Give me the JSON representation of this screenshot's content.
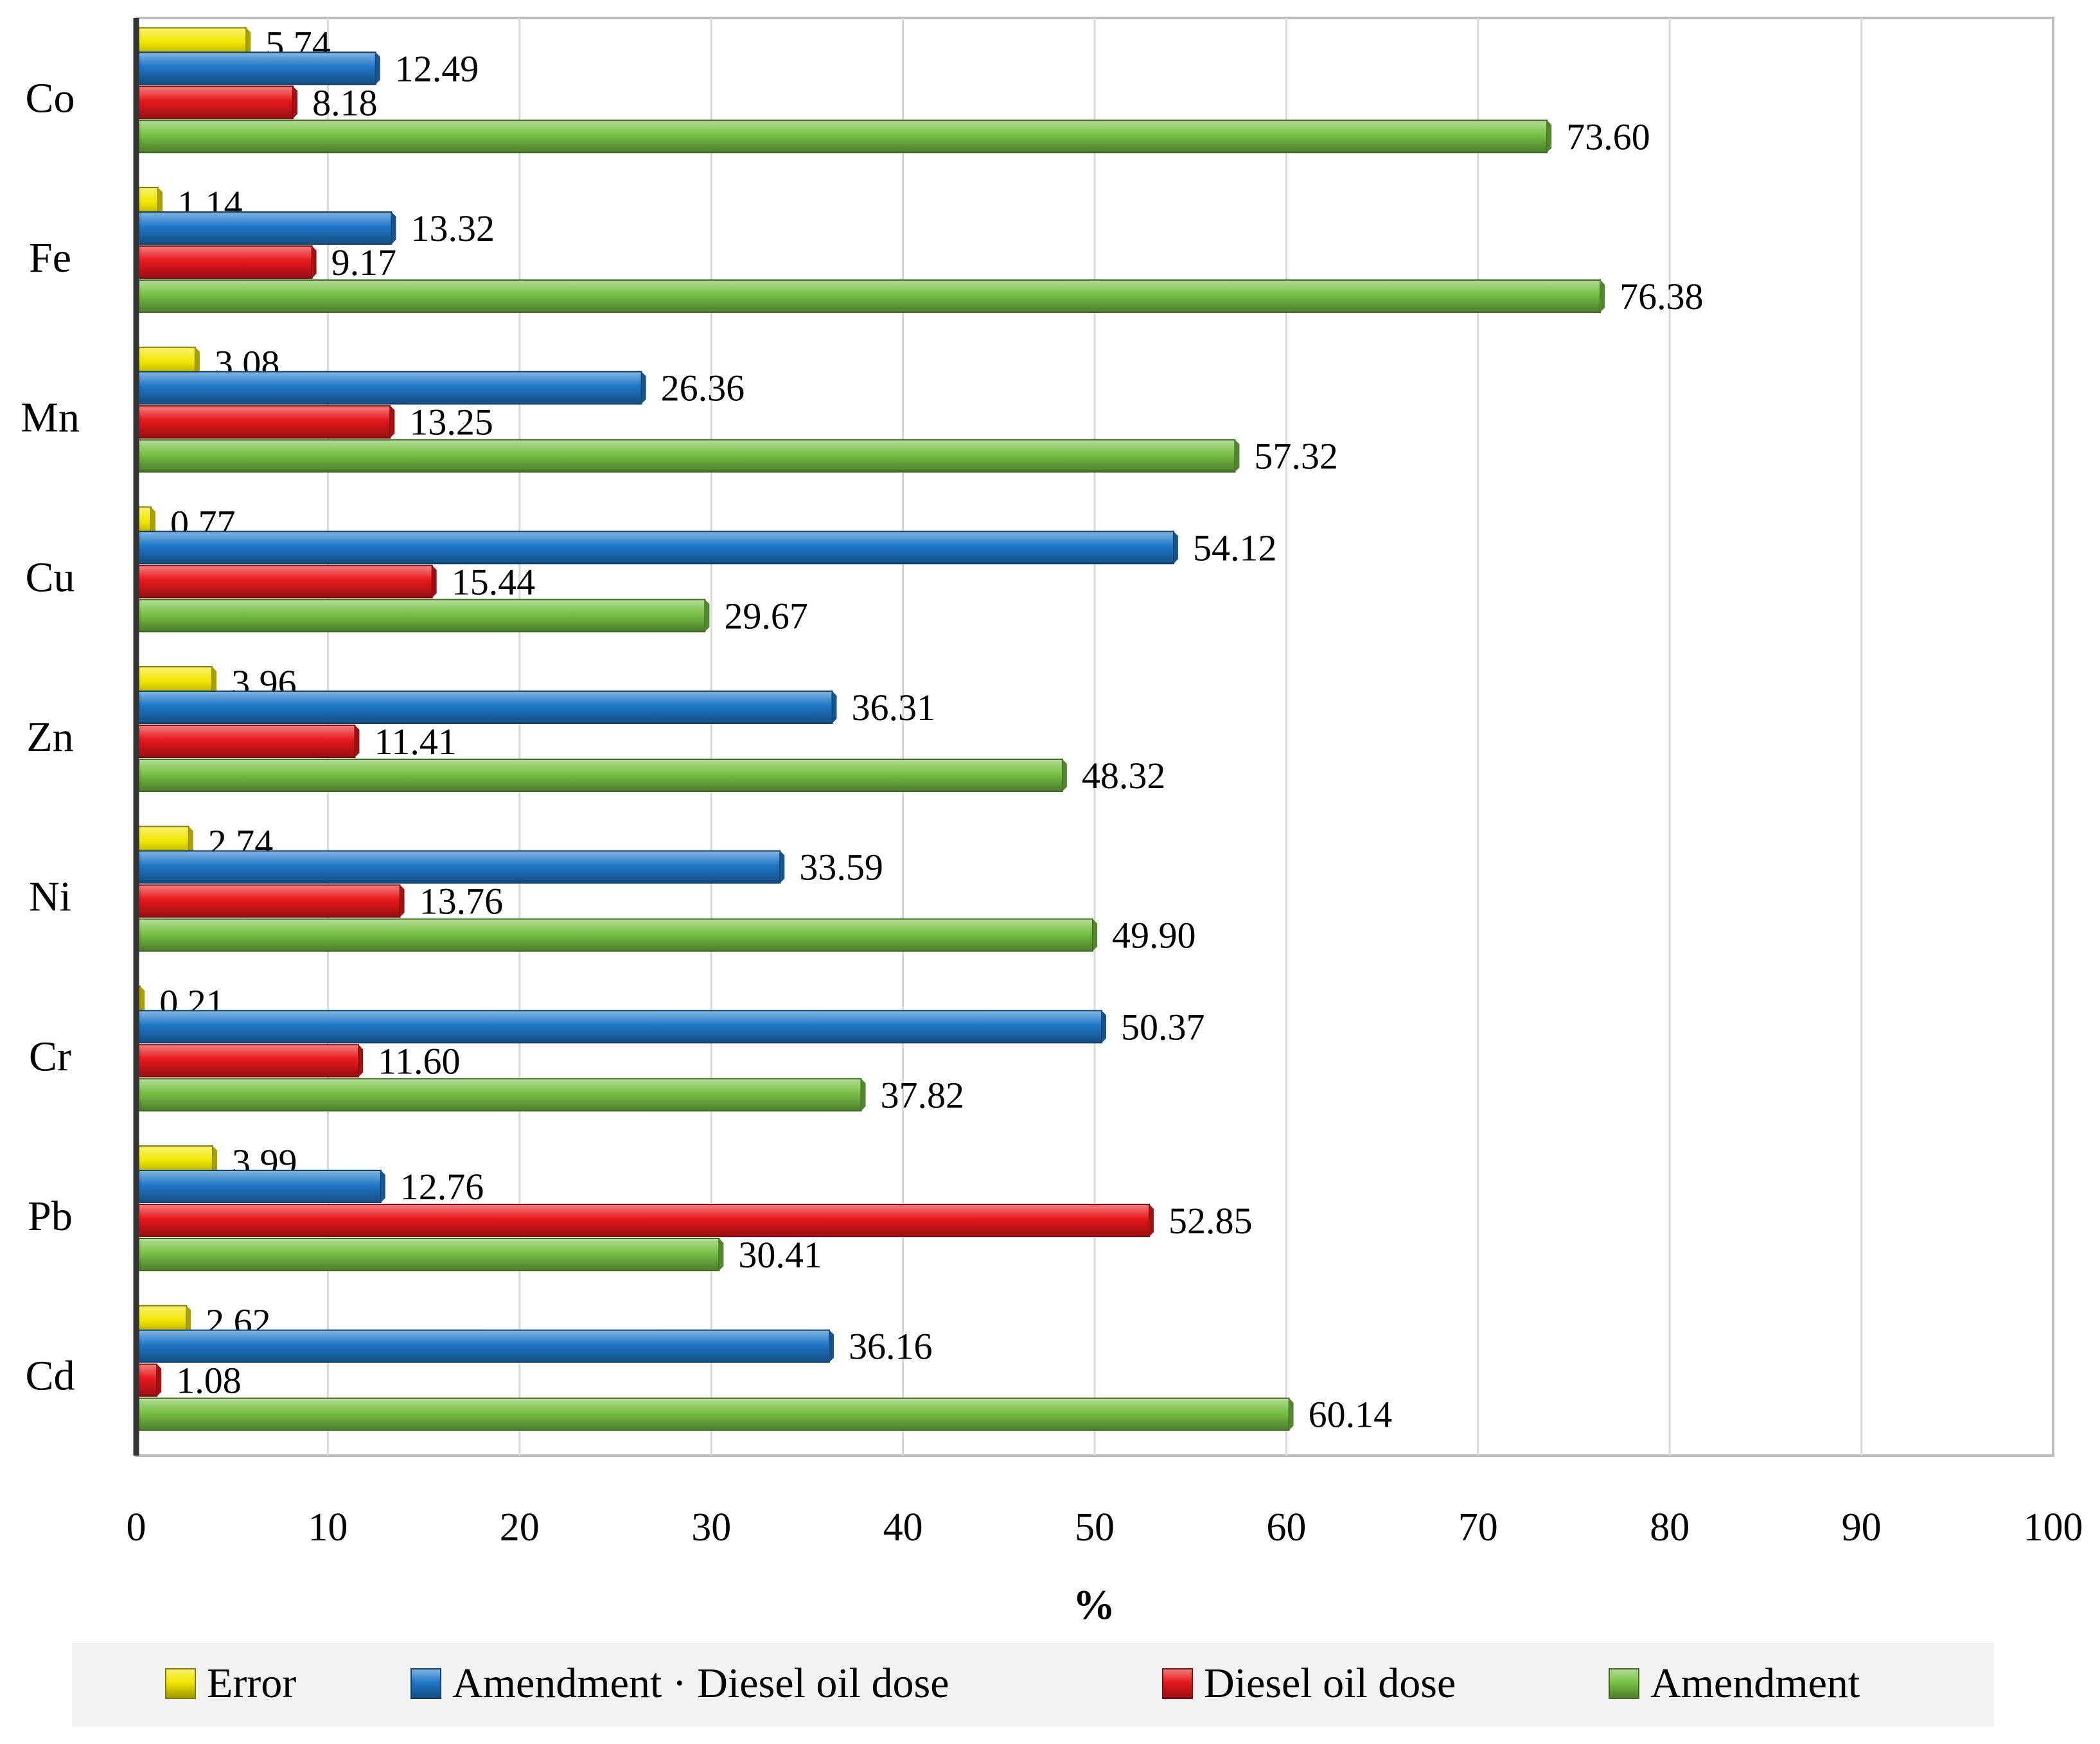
{
  "chart_data": {
    "type": "bar",
    "orientation": "horizontal",
    "title": "",
    "xlabel": "%",
    "ylabel": "",
    "xlim": [
      0,
      100
    ],
    "xticks": [
      "0",
      "10",
      "20",
      "30",
      "40",
      "50",
      "60",
      "70",
      "80",
      "90",
      "100"
    ],
    "grid": true,
    "legend_position": "bottom",
    "categories": [
      "Co",
      "Fe",
      "Mn",
      "Cu",
      "Zn",
      "Ni",
      "Cr",
      "Pb",
      "Cd"
    ],
    "series": [
      {
        "name": "Error",
        "color": "#f2e600",
        "values": [
          5.74,
          1.14,
          3.08,
          0.77,
          3.96,
          2.74,
          0.21,
          3.99,
          2.62
        ],
        "labels": [
          "5.74",
          "1.14",
          "3.08",
          "0.77",
          "3.96",
          "2.74",
          "0.21",
          "3.99",
          "2.62"
        ]
      },
      {
        "name": "Amendment · Diesel oil dose",
        "color": "#1f78c8",
        "values": [
          12.49,
          13.32,
          26.36,
          54.12,
          36.31,
          33.59,
          50.37,
          12.76,
          36.16
        ],
        "labels": [
          "12.49",
          "13.32",
          "26.36",
          "54.12",
          "36.31",
          "33.59",
          "50.37",
          "12.76",
          "36.16"
        ]
      },
      {
        "name": "Diesel oil dose",
        "color": "#e8191c",
        "values": [
          8.18,
          9.17,
          13.25,
          15.44,
          11.41,
          13.76,
          11.6,
          52.85,
          1.08
        ],
        "labels": [
          "8.18",
          "9.17",
          "13.25",
          "15.44",
          "11.41",
          "13.76",
          "11.60",
          "52.85",
          "1.08"
        ]
      },
      {
        "name": "Amendment",
        "color": "#76c043",
        "values": [
          73.6,
          76.38,
          57.32,
          29.67,
          48.32,
          49.9,
          37.82,
          30.41,
          60.14
        ],
        "labels": [
          "73.60",
          "76.38",
          "57.32",
          "29.67",
          "48.32",
          "49.90",
          "37.82",
          "30.41",
          "60.14"
        ]
      }
    ]
  }
}
